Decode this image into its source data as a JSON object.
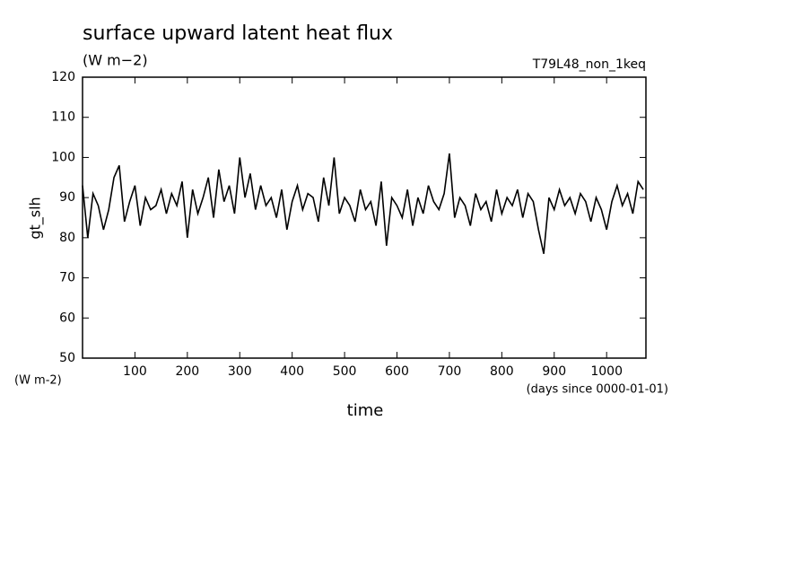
{
  "chart_data": {
    "type": "line",
    "title": "surface upward latent heat flux",
    "subtitle": "(W m−2)",
    "run_label": "T79L48_non_1keq",
    "ylabel": "gt_slh",
    "y_unit": "(W m-2)",
    "xlabel": "time",
    "x_unit": "(days since 0000-01-01)",
    "color": "#000000",
    "x": [
      0,
      10,
      20,
      30,
      40,
      50,
      60,
      70,
      80,
      90,
      100,
      110,
      120,
      130,
      140,
      150,
      160,
      170,
      180,
      190,
      200,
      210,
      220,
      230,
      240,
      250,
      260,
      270,
      280,
      290,
      300,
      310,
      320,
      330,
      340,
      350,
      360,
      370,
      380,
      390,
      400,
      410,
      420,
      430,
      440,
      450,
      460,
      470,
      480,
      490,
      500,
      510,
      520,
      530,
      540,
      550,
      560,
      570,
      580,
      590,
      600,
      610,
      620,
      630,
      640,
      650,
      660,
      670,
      680,
      690,
      700,
      710,
      720,
      730,
      740,
      750,
      760,
      770,
      780,
      790,
      800,
      810,
      820,
      830,
      840,
      850,
      860,
      870,
      880,
      890,
      900,
      910,
      920,
      930,
      940,
      950,
      960,
      970,
      980,
      990,
      1000,
      1010,
      1020,
      1030,
      1040,
      1050,
      1060,
      1070
    ],
    "values": [
      93,
      80,
      91,
      88,
      82,
      87,
      95,
      98,
      84,
      89,
      93,
      83,
      90,
      87,
      88,
      92,
      86,
      91,
      88,
      94,
      80,
      92,
      86,
      90,
      95,
      85,
      97,
      89,
      93,
      86,
      100,
      90,
      96,
      87,
      93,
      88,
      90,
      85,
      92,
      82,
      89,
      93,
      87,
      91,
      90,
      84,
      95,
      88,
      100,
      86,
      90,
      88,
      84,
      92,
      87,
      89,
      83,
      94,
      78,
      90,
      88,
      85,
      92,
      83,
      90,
      86,
      93,
      89,
      87,
      91,
      101,
      85,
      90,
      88,
      83,
      91,
      87,
      89,
      84,
      92,
      86,
      90,
      88,
      92,
      85,
      91,
      89,
      82,
      76,
      90,
      87,
      92,
      88,
      90,
      86,
      91,
      89,
      84,
      90,
      87,
      82,
      89,
      93,
      88,
      91,
      86,
      94,
      92
    ],
    "xlim": [
      0,
      1075
    ],
    "ylim": [
      50,
      120
    ],
    "xticks": [
      100,
      200,
      300,
      400,
      500,
      600,
      700,
      800,
      900,
      1000
    ],
    "yticks": [
      50,
      60,
      70,
      80,
      90,
      100,
      110,
      120
    ]
  }
}
